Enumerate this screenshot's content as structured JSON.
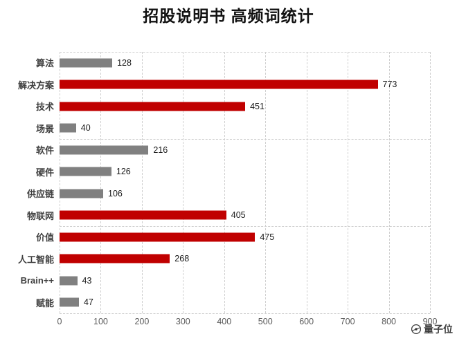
{
  "title": "招股说明书 高频词统计",
  "watermark": {
    "text": "量子位"
  },
  "chart_data": {
    "type": "bar",
    "orientation": "horizontal",
    "title": "招股说明书 高频词统计",
    "categories": [
      "算法",
      "解决方案",
      "技术",
      "场景",
      "软件",
      "硬件",
      "供应链",
      "物联网",
      "价值",
      "人工智能",
      "Brain++",
      "赋能"
    ],
    "values": [
      128,
      773,
      451,
      40,
      216,
      126,
      106,
      405,
      475,
      268,
      43,
      47
    ],
    "bar_colors": [
      "gray",
      "red",
      "red",
      "gray",
      "gray",
      "gray",
      "gray",
      "red",
      "red",
      "red",
      "gray",
      "gray"
    ],
    "colors": {
      "red": "#c00000",
      "gray": "#808080"
    },
    "xlabel": "",
    "ylabel": "",
    "xlim": [
      0,
      900
    ],
    "xticks": [
      0,
      100,
      200,
      300,
      400,
      500,
      600,
      700,
      800,
      900
    ],
    "grid": "vertical dashed gridlines at every 100; horizontal dashed boundary lines every 4 categories",
    "legend": "none",
    "data_labels": true
  }
}
